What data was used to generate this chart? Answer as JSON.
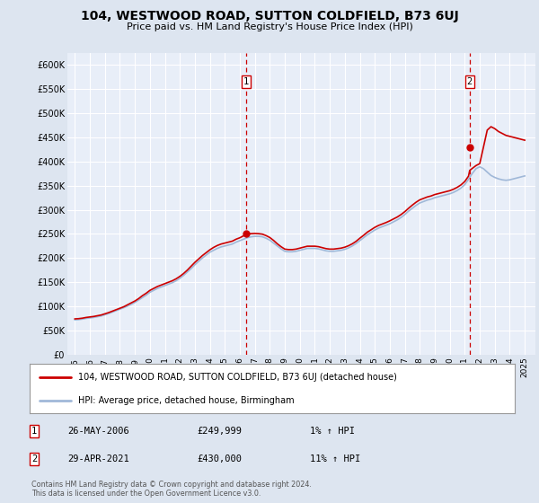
{
  "title": "104, WESTWOOD ROAD, SUTTON COLDFIELD, B73 6UJ",
  "subtitle": "Price paid vs. HM Land Registry's House Price Index (HPI)",
  "bg_color": "#dde5f0",
  "plot_bg_color": "#e8eef8",
  "grid_color": "#ffffff",
  "hpi_color": "#a0b8d8",
  "price_color": "#cc0000",
  "dashed_color": "#cc0000",
  "ylim_min": 0,
  "ylim_max": 625000,
  "yticks": [
    0,
    50000,
    100000,
    150000,
    200000,
    250000,
    300000,
    350000,
    400000,
    450000,
    500000,
    550000,
    600000
  ],
  "xlim_start": 1994.5,
  "xlim_end": 2025.7,
  "xticks": [
    1995,
    1996,
    1997,
    1998,
    1999,
    2000,
    2001,
    2002,
    2003,
    2004,
    2005,
    2006,
    2007,
    2008,
    2009,
    2010,
    2011,
    2012,
    2013,
    2014,
    2015,
    2016,
    2017,
    2018,
    2019,
    2020,
    2021,
    2022,
    2023,
    2024,
    2025
  ],
  "purchase1_x": 2006.42,
  "purchase1_y": 249999,
  "purchase1_label": "1",
  "purchase2_x": 2021.33,
  "purchase2_y": 430000,
  "purchase2_label": "2",
  "legend_line1": "104, WESTWOOD ROAD, SUTTON COLDFIELD, B73 6UJ (detached house)",
  "legend_line2": "HPI: Average price, detached house, Birmingham",
  "annot1_date": "26-MAY-2006",
  "annot1_price": "£249,999",
  "annot1_hpi": "1% ↑ HPI",
  "annot2_date": "29-APR-2021",
  "annot2_price": "£430,000",
  "annot2_hpi": "11% ↑ HPI",
  "footer": "Contains HM Land Registry data © Crown copyright and database right 2024.\nThis data is licensed under the Open Government Licence v3.0.",
  "hpi_data_x": [
    1995.0,
    1995.25,
    1995.5,
    1995.75,
    1996.0,
    1996.25,
    1996.5,
    1996.75,
    1997.0,
    1997.25,
    1997.5,
    1997.75,
    1998.0,
    1998.25,
    1998.5,
    1998.75,
    1999.0,
    1999.25,
    1999.5,
    1999.75,
    2000.0,
    2000.25,
    2000.5,
    2000.75,
    2001.0,
    2001.25,
    2001.5,
    2001.75,
    2002.0,
    2002.25,
    2002.5,
    2002.75,
    2003.0,
    2003.25,
    2003.5,
    2003.75,
    2004.0,
    2004.25,
    2004.5,
    2004.75,
    2005.0,
    2005.25,
    2005.5,
    2005.75,
    2006.0,
    2006.25,
    2006.5,
    2006.75,
    2007.0,
    2007.25,
    2007.5,
    2007.75,
    2008.0,
    2008.25,
    2008.5,
    2008.75,
    2009.0,
    2009.25,
    2009.5,
    2009.75,
    2010.0,
    2010.25,
    2010.5,
    2010.75,
    2011.0,
    2011.25,
    2011.5,
    2011.75,
    2012.0,
    2012.25,
    2012.5,
    2012.75,
    2013.0,
    2013.25,
    2013.5,
    2013.75,
    2014.0,
    2014.25,
    2014.5,
    2014.75,
    2015.0,
    2015.25,
    2015.5,
    2015.75,
    2016.0,
    2016.25,
    2016.5,
    2016.75,
    2017.0,
    2017.25,
    2017.5,
    2017.75,
    2018.0,
    2018.25,
    2018.5,
    2018.75,
    2019.0,
    2019.25,
    2019.5,
    2019.75,
    2020.0,
    2020.25,
    2020.5,
    2020.75,
    2021.0,
    2021.25,
    2021.5,
    2021.75,
    2022.0,
    2022.25,
    2022.5,
    2022.75,
    2023.0,
    2023.25,
    2023.5,
    2023.75,
    2024.0,
    2024.25,
    2024.5,
    2024.75,
    2025.0
  ],
  "hpi_data_y": [
    72000,
    72500,
    73500,
    75000,
    76000,
    77000,
    78500,
    80000,
    82500,
    85000,
    88000,
    91000,
    94000,
    97000,
    100500,
    104000,
    108000,
    113000,
    118000,
    123000,
    129000,
    133000,
    137000,
    140000,
    143000,
    146000,
    149000,
    153000,
    158000,
    164000,
    171000,
    178000,
    186000,
    193000,
    200000,
    206000,
    212000,
    216000,
    220000,
    223000,
    225000,
    227000,
    229000,
    233000,
    236000,
    239000,
    242000,
    244000,
    245000,
    245000,
    244000,
    241000,
    237000,
    231000,
    225000,
    219000,
    214000,
    213000,
    213000,
    214000,
    216000,
    218000,
    220000,
    220000,
    220000,
    219000,
    217000,
    215000,
    214000,
    214000,
    215000,
    216000,
    218000,
    221000,
    225000,
    230000,
    236000,
    242000,
    248000,
    253000,
    258000,
    262000,
    265000,
    268000,
    271000,
    275000,
    279000,
    284000,
    290000,
    297000,
    303000,
    309000,
    314000,
    317000,
    320000,
    322000,
    325000,
    327000,
    329000,
    331000,
    333000,
    336000,
    340000,
    345000,
    352000,
    363000,
    375000,
    385000,
    389000,
    385000,
    378000,
    371000,
    367000,
    364000,
    362000,
    361000,
    362000,
    364000,
    366000,
    368000,
    370000
  ],
  "price_data_x": [
    1995.0,
    1995.25,
    1995.5,
    1995.75,
    1996.0,
    1996.25,
    1996.5,
    1996.75,
    1997.0,
    1997.25,
    1997.5,
    1997.75,
    1998.0,
    1998.25,
    1998.5,
    1998.75,
    1999.0,
    1999.25,
    1999.5,
    1999.75,
    2000.0,
    2000.25,
    2000.5,
    2000.75,
    2001.0,
    2001.25,
    2001.5,
    2001.75,
    2002.0,
    2002.25,
    2002.5,
    2002.75,
    2003.0,
    2003.25,
    2003.5,
    2003.75,
    2004.0,
    2004.25,
    2004.5,
    2004.75,
    2005.0,
    2005.25,
    2005.5,
    2005.75,
    2006.0,
    2006.25,
    2006.42,
    2006.75,
    2007.0,
    2007.25,
    2007.5,
    2007.75,
    2008.0,
    2008.25,
    2008.5,
    2008.75,
    2009.0,
    2009.25,
    2009.5,
    2009.75,
    2010.0,
    2010.25,
    2010.5,
    2010.75,
    2011.0,
    2011.25,
    2011.5,
    2011.75,
    2012.0,
    2012.25,
    2012.5,
    2012.75,
    2013.0,
    2013.25,
    2013.5,
    2013.75,
    2014.0,
    2014.25,
    2014.5,
    2014.75,
    2015.0,
    2015.25,
    2015.5,
    2015.75,
    2016.0,
    2016.25,
    2016.5,
    2016.75,
    2017.0,
    2017.25,
    2017.5,
    2017.75,
    2018.0,
    2018.25,
    2018.5,
    2018.75,
    2019.0,
    2019.25,
    2019.5,
    2019.75,
    2020.0,
    2020.25,
    2020.5,
    2020.75,
    2021.0,
    2021.25,
    2021.33,
    2021.75,
    2022.0,
    2022.25,
    2022.5,
    2022.75,
    2023.0,
    2023.25,
    2023.5,
    2023.75,
    2024.0,
    2024.25,
    2024.5,
    2024.75,
    2025.0
  ],
  "price_data_y": [
    74000,
    74500,
    75500,
    77000,
    78000,
    79000,
    80500,
    82000,
    84500,
    87000,
    90000,
    93000,
    96000,
    99000,
    103000,
    107000,
    111000,
    116000,
    122000,
    127000,
    133000,
    137000,
    141000,
    144000,
    147000,
    150000,
    153000,
    157000,
    162000,
    168000,
    175000,
    183000,
    191000,
    198000,
    205000,
    211000,
    217000,
    222000,
    226000,
    229000,
    231000,
    233000,
    235000,
    239000,
    242000,
    246000,
    249999,
    250500,
    251000,
    250500,
    249500,
    246500,
    242500,
    236500,
    229500,
    223500,
    218500,
    217500,
    217500,
    218500,
    220500,
    222500,
    224500,
    224500,
    224500,
    223500,
    221500,
    219500,
    218500,
    218500,
    219500,
    220500,
    222500,
    225500,
    229500,
    234500,
    241000,
    247000,
    253500,
    258500,
    263500,
    267500,
    270500,
    273500,
    277000,
    281000,
    285000,
    290000,
    296000,
    303000,
    309500,
    315500,
    320500,
    323500,
    326500,
    328500,
    331500,
    333500,
    335500,
    337500,
    339500,
    342500,
    346500,
    351500,
    358500,
    369500,
    381500,
    391500,
    395500,
    430000,
    465000,
    472000,
    468000,
    462000,
    458000,
    454000,
    452000,
    450000,
    448000,
    446000,
    444000
  ]
}
